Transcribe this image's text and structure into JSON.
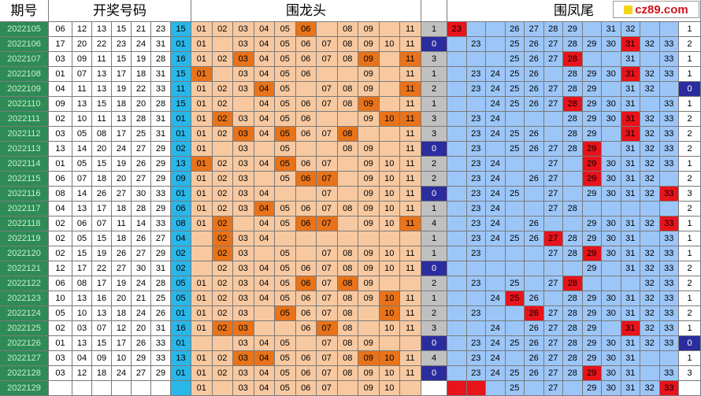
{
  "headers": {
    "period": "期号",
    "draw": "开奖号码",
    "dragon": "围龙头",
    "phoenix": "围凤尾"
  },
  "logo": "cz89.com",
  "colors": {
    "period_bg": "#2e8b57",
    "blue_ball": "#29b6e8",
    "peach": "#f8c9a0",
    "orange_hit": "#e8731a",
    "grey": "#c0c0c0",
    "navy": "#2b2d9e",
    "light_blue": "#9cc6f8",
    "red_hit": "#e8131b"
  },
  "rows": [
    {
      "period": "2022105",
      "draw": [
        "06",
        "12",
        "13",
        "15",
        "21",
        "23"
      ],
      "blue": "15",
      "dragon": [
        "01",
        "02",
        "03",
        "04",
        "05",
        "06",
        "",
        "08",
        "09",
        "",
        "11"
      ],
      "dragon_hits": [
        5
      ],
      "dragon_count": "1",
      "phoenix": [
        "23",
        "",
        "",
        "26",
        "27",
        "28",
        "29",
        "",
        "31",
        "32",
        "",
        ""
      ],
      "phoenix_hits": [
        0
      ],
      "phoenix_count": "1"
    },
    {
      "period": "2022106",
      "draw": [
        "17",
        "20",
        "22",
        "23",
        "24",
        "31"
      ],
      "blue": "01",
      "dragon": [
        "01",
        "",
        "03",
        "04",
        "05",
        "06",
        "07",
        "08",
        "09",
        "10",
        "11"
      ],
      "dragon_hits": [],
      "dragon_count": "0",
      "phoenix": [
        "",
        "23",
        "",
        "25",
        "26",
        "27",
        "28",
        "29",
        "30",
        "31",
        "32",
        "33"
      ],
      "phoenix_hits": [
        9
      ],
      "phoenix_count": "2"
    },
    {
      "period": "2022107",
      "draw": [
        "03",
        "09",
        "11",
        "15",
        "19",
        "28"
      ],
      "blue": "16",
      "dragon": [
        "01",
        "02",
        "03",
        "04",
        "05",
        "06",
        "07",
        "08",
        "09",
        "",
        "11"
      ],
      "dragon_hits": [
        2,
        8,
        10
      ],
      "dragon_count": "3",
      "phoenix": [
        "",
        "",
        "",
        "25",
        "26",
        "27",
        "28",
        "",
        "",
        "31",
        "",
        "33"
      ],
      "phoenix_hits": [
        6
      ],
      "phoenix_count": "1"
    },
    {
      "period": "2022108",
      "draw": [
        "01",
        "07",
        "13",
        "17",
        "18",
        "31"
      ],
      "blue": "15",
      "dragon": [
        "01",
        "",
        "03",
        "04",
        "05",
        "06",
        "",
        "",
        "09",
        "",
        "11"
      ],
      "dragon_hits": [
        0
      ],
      "dragon_count": "1",
      "phoenix": [
        "",
        "23",
        "24",
        "25",
        "26",
        "",
        "28",
        "29",
        "30",
        "31",
        "32",
        "33"
      ],
      "phoenix_hits": [
        9
      ],
      "phoenix_count": "1"
    },
    {
      "period": "2022109",
      "draw": [
        "04",
        "11",
        "13",
        "19",
        "22",
        "33"
      ],
      "blue": "11",
      "dragon": [
        "01",
        "02",
        "03",
        "04",
        "05",
        "",
        "07",
        "08",
        "09",
        "",
        "11"
      ],
      "dragon_hits": [
        3,
        10
      ],
      "dragon_count": "2",
      "phoenix": [
        "",
        "23",
        "24",
        "25",
        "26",
        "27",
        "28",
        "29",
        "",
        "31",
        "32",
        ""
      ],
      "phoenix_hits": [],
      "phoenix_count": "0"
    },
    {
      "period": "2022110",
      "draw": [
        "09",
        "13",
        "15",
        "18",
        "20",
        "28"
      ],
      "blue": "15",
      "dragon": [
        "01",
        "02",
        "",
        "04",
        "05",
        "06",
        "07",
        "08",
        "09",
        "",
        "11"
      ],
      "dragon_hits": [
        8
      ],
      "dragon_count": "1",
      "phoenix": [
        "",
        "",
        "24",
        "25",
        "26",
        "27",
        "28",
        "29",
        "30",
        "31",
        "",
        "33"
      ],
      "phoenix_hits": [
        6
      ],
      "phoenix_count": "1"
    },
    {
      "period": "2022111",
      "draw": [
        "02",
        "10",
        "11",
        "13",
        "28",
        "31"
      ],
      "blue": "01",
      "dragon": [
        "01",
        "02",
        "03",
        "04",
        "05",
        "06",
        "",
        "",
        "09",
        "10",
        "11"
      ],
      "dragon_hits": [
        1,
        9,
        10
      ],
      "dragon_count": "3",
      "phoenix": [
        "",
        "23",
        "24",
        "",
        "",
        "",
        "28",
        "29",
        "30",
        "31",
        "32",
        "33"
      ],
      "phoenix_hits": [
        9
      ],
      "phoenix_count": "2"
    },
    {
      "period": "2022112",
      "draw": [
        "03",
        "05",
        "08",
        "17",
        "25",
        "31"
      ],
      "blue": "01",
      "dragon": [
        "01",
        "02",
        "03",
        "04",
        "05",
        "06",
        "07",
        "08",
        "",
        "",
        "11"
      ],
      "dragon_hits": [
        2,
        4,
        7
      ],
      "dragon_count": "3",
      "phoenix": [
        "",
        "23",
        "24",
        "25",
        "26",
        "",
        "28",
        "29",
        "",
        "31",
        "32",
        "33"
      ],
      "phoenix_hits": [
        9
      ],
      "phoenix_count": "2"
    },
    {
      "period": "2022113",
      "draw": [
        "13",
        "14",
        "20",
        "24",
        "27",
        "29"
      ],
      "blue": "02",
      "dragon": [
        "01",
        "",
        "03",
        "",
        "05",
        "",
        "",
        "08",
        "09",
        "",
        "11"
      ],
      "dragon_hits": [],
      "dragon_count": "0",
      "phoenix": [
        "",
        "23",
        "",
        "25",
        "26",
        "27",
        "28",
        "29",
        "",
        "31",
        "32",
        "33"
      ],
      "phoenix_hits": [
        7
      ],
      "phoenix_count": "2"
    },
    {
      "period": "2022114",
      "draw": [
        "01",
        "05",
        "15",
        "19",
        "26",
        "29"
      ],
      "blue": "13",
      "dragon": [
        "01",
        "02",
        "03",
        "04",
        "05",
        "06",
        "07",
        "",
        "09",
        "10",
        "11"
      ],
      "dragon_hits": [
        0,
        4
      ],
      "dragon_count": "2",
      "phoenix": [
        "",
        "23",
        "24",
        "",
        "",
        "27",
        "",
        "29",
        "30",
        "31",
        "32",
        "33"
      ],
      "phoenix_hits": [
        7
      ],
      "phoenix_count": "1"
    },
    {
      "period": "2022115",
      "draw": [
        "06",
        "07",
        "18",
        "20",
        "27",
        "29"
      ],
      "blue": "09",
      "dragon": [
        "01",
        "02",
        "03",
        "",
        "05",
        "06",
        "07",
        "",
        "09",
        "10",
        "11"
      ],
      "dragon_hits": [
        5,
        6
      ],
      "dragon_count": "2",
      "phoenix": [
        "",
        "23",
        "24",
        "",
        "26",
        "27",
        "",
        "29",
        "30",
        "31",
        "32",
        ""
      ],
      "phoenix_hits": [
        7
      ],
      "phoenix_count": "2"
    },
    {
      "period": "2022116",
      "draw": [
        "08",
        "14",
        "26",
        "27",
        "30",
        "33"
      ],
      "blue": "01",
      "dragon": [
        "01",
        "02",
        "03",
        "04",
        "",
        "",
        "07",
        "",
        "09",
        "10",
        "11"
      ],
      "dragon_hits": [],
      "dragon_count": "0",
      "phoenix": [
        "",
        "23",
        "24",
        "25",
        "",
        "27",
        "",
        "29",
        "30",
        "31",
        "32",
        "33"
      ],
      "phoenix_hits": [
        11
      ],
      "phoenix_count": "3"
    },
    {
      "period": "2022117",
      "draw": [
        "04",
        "13",
        "17",
        "18",
        "28",
        "29"
      ],
      "blue": "06",
      "dragon": [
        "01",
        "02",
        "03",
        "04",
        "05",
        "06",
        "07",
        "08",
        "09",
        "10",
        "11"
      ],
      "dragon_hits": [
        3
      ],
      "dragon_count": "1",
      "phoenix": [
        "",
        "23",
        "24",
        "",
        "",
        "27",
        "28",
        "",
        "",
        "",
        "",
        ""
      ],
      "phoenix_hits": [],
      "phoenix_count": "2"
    },
    {
      "period": "2022118",
      "draw": [
        "02",
        "06",
        "07",
        "11",
        "14",
        "33"
      ],
      "blue": "08",
      "dragon": [
        "01",
        "02",
        "",
        "04",
        "05",
        "06",
        "07",
        "",
        "09",
        "10",
        "11"
      ],
      "dragon_hits": [
        1,
        5,
        6,
        10
      ],
      "dragon_count": "4",
      "phoenix": [
        "",
        "23",
        "24",
        "",
        "26",
        "",
        "",
        "29",
        "30",
        "31",
        "32",
        "33"
      ],
      "phoenix_hits": [
        11
      ],
      "phoenix_count": "1"
    },
    {
      "period": "2022119",
      "draw": [
        "02",
        "05",
        "15",
        "18",
        "26",
        "27"
      ],
      "blue": "04",
      "dragon": [
        "",
        "02",
        "03",
        "04",
        "",
        "",
        "",
        "",
        "",
        "",
        ""
      ],
      "dragon_hits": [
        1
      ],
      "dragon_count": "1",
      "phoenix": [
        "",
        "23",
        "24",
        "25",
        "26",
        "27",
        "28",
        "29",
        "30",
        "31",
        "",
        "33"
      ],
      "phoenix_hits": [
        5
      ],
      "phoenix_count": "1"
    },
    {
      "period": "2022120",
      "draw": [
        "02",
        "15",
        "19",
        "26",
        "27",
        "29"
      ],
      "blue": "02",
      "dragon": [
        "",
        "02",
        "03",
        "",
        "05",
        "",
        "07",
        "08",
        "09",
        "10",
        "11"
      ],
      "dragon_hits": [
        1
      ],
      "dragon_count": "1",
      "phoenix": [
        "",
        "23",
        "",
        "",
        "",
        "27",
        "28",
        "29",
        "30",
        "31",
        "32",
        "33"
      ],
      "phoenix_hits": [
        7
      ],
      "phoenix_count": "1"
    },
    {
      "period": "2022121",
      "draw": [
        "12",
        "17",
        "22",
        "27",
        "30",
        "31"
      ],
      "blue": "02",
      "dragon": [
        "",
        "02",
        "03",
        "04",
        "05",
        "06",
        "07",
        "08",
        "09",
        "10",
        "11"
      ],
      "dragon_hits": [],
      "dragon_count": "0",
      "phoenix": [
        "",
        "",
        "",
        "",
        "",
        "",
        "",
        "29",
        "",
        "31",
        "32",
        "33"
      ],
      "phoenix_hits": [],
      "phoenix_count": "2"
    },
    {
      "period": "2022122",
      "draw": [
        "06",
        "08",
        "17",
        "19",
        "24",
        "28"
      ],
      "blue": "05",
      "dragon": [
        "01",
        "02",
        "03",
        "04",
        "05",
        "06",
        "07",
        "08",
        "09",
        "",
        ""
      ],
      "dragon_hits": [
        5,
        7
      ],
      "dragon_count": "2",
      "phoenix": [
        "",
        "23",
        "",
        "25",
        "",
        "27",
        "28",
        "",
        "",
        "",
        "32",
        "33"
      ],
      "phoenix_hits": [
        6
      ],
      "phoenix_count": "2"
    },
    {
      "period": "2022123",
      "draw": [
        "10",
        "13",
        "16",
        "20",
        "21",
        "25"
      ],
      "blue": "05",
      "dragon": [
        "01",
        "02",
        "03",
        "04",
        "05",
        "06",
        "07",
        "08",
        "09",
        "10",
        "11"
      ],
      "dragon_hits": [
        9
      ],
      "dragon_count": "1",
      "phoenix": [
        "",
        "",
        "24",
        "25",
        "26",
        "",
        "28",
        "29",
        "30",
        "31",
        "32",
        "33"
      ],
      "phoenix_hits": [
        3
      ],
      "phoenix_count": "1"
    },
    {
      "period": "2022124",
      "draw": [
        "05",
        "10",
        "13",
        "18",
        "24",
        "26"
      ],
      "blue": "01",
      "dragon": [
        "01",
        "02",
        "03",
        "",
        "05",
        "06",
        "07",
        "08",
        "",
        "10",
        "11"
      ],
      "dragon_hits": [
        4,
        9
      ],
      "dragon_count": "2",
      "phoenix": [
        "",
        "23",
        "",
        "",
        "26",
        "27",
        "28",
        "29",
        "30",
        "31",
        "32",
        "33"
      ],
      "phoenix_hits": [
        4
      ],
      "phoenix_count": "2"
    },
    {
      "period": "2022125",
      "draw": [
        "02",
        "03",
        "07",
        "12",
        "20",
        "31"
      ],
      "blue": "16",
      "dragon": [
        "01",
        "02",
        "03",
        "",
        "",
        "06",
        "07",
        "08",
        "",
        "10",
        "11"
      ],
      "dragon_hits": [
        1,
        2,
        6
      ],
      "dragon_count": "3",
      "phoenix": [
        "",
        "",
        "24",
        "",
        "26",
        "27",
        "28",
        "29",
        "",
        "31",
        "32",
        "33"
      ],
      "phoenix_hits": [
        9
      ],
      "phoenix_count": "1"
    },
    {
      "period": "2022126",
      "draw": [
        "01",
        "13",
        "15",
        "17",
        "26",
        "33"
      ],
      "blue": "01",
      "dragon": [
        "",
        "",
        "03",
        "04",
        "05",
        "",
        "07",
        "08",
        "09",
        "",
        ""
      ],
      "dragon_hits": [],
      "dragon_count": "0",
      "phoenix": [
        "",
        "23",
        "24",
        "25",
        "26",
        "27",
        "28",
        "29",
        "30",
        "31",
        "32",
        "33"
      ],
      "phoenix_hits": [],
      "phoenix_count": "0"
    },
    {
      "period": "2022127",
      "draw": [
        "03",
        "04",
        "09",
        "10",
        "29",
        "33"
      ],
      "blue": "13",
      "dragon": [
        "01",
        "02",
        "03",
        "04",
        "05",
        "06",
        "07",
        "08",
        "09",
        "10",
        "11"
      ],
      "dragon_hits": [
        2,
        3,
        8,
        9
      ],
      "dragon_count": "4",
      "phoenix": [
        "",
        "23",
        "24",
        "",
        "26",
        "27",
        "28",
        "29",
        "30",
        "31",
        "",
        ""
      ],
      "phoenix_hits": [],
      "phoenix_count": "1"
    },
    {
      "period": "2022128",
      "draw": [
        "03",
        "12",
        "18",
        "24",
        "27",
        "29"
      ],
      "blue": "01",
      "dragon": [
        "01",
        "02",
        "03",
        "04",
        "05",
        "06",
        "07",
        "08",
        "09",
        "10",
        "11"
      ],
      "dragon_hits": [],
      "dragon_count": "0",
      "phoenix": [
        "",
        "23",
        "24",
        "25",
        "26",
        "27",
        "28",
        "29",
        "30",
        "31",
        "",
        "33"
      ],
      "phoenix_hits": [
        7
      ],
      "phoenix_count": "3"
    },
    {
      "period": "2022129",
      "draw": [
        "",
        "",
        "",
        "",
        "",
        ""
      ],
      "blue": "",
      "dragon": [
        "01",
        "",
        "03",
        "04",
        "05",
        "06",
        "07",
        "",
        "09",
        "10",
        ""
      ],
      "dragon_hits": [],
      "dragon_count": "",
      "phoenix": [
        "",
        "",
        "",
        "25",
        "",
        "27",
        "",
        "29",
        "30",
        "31",
        "32",
        "33"
      ],
      "phoenix_hits": [
        0,
        1,
        11
      ],
      "phoenix_count": ""
    }
  ]
}
